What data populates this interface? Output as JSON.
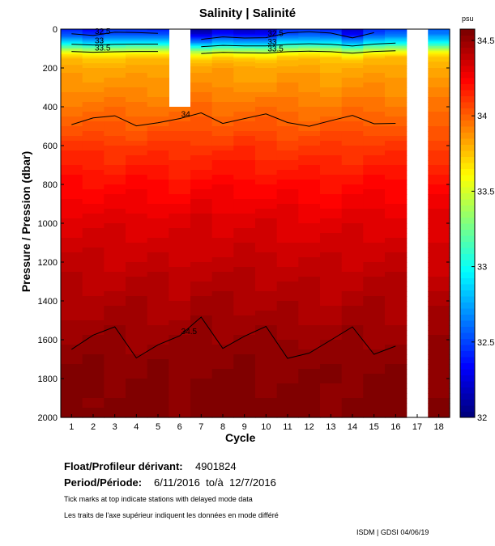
{
  "chart_data": {
    "type": "heatmap",
    "title": "Salinity | Salinité",
    "xlabel": "Cycle",
    "ylabel": "Pressure / Pression (dbar)",
    "colorbar_label": "psu",
    "colorbar_ticks": [
      "32",
      "32.5",
      "33",
      "33.5",
      "34",
      "34.5"
    ],
    "clim": [
      32,
      34.575
    ],
    "x_ticks": [
      "1",
      "2",
      "3",
      "4",
      "5",
      "6",
      "7",
      "8",
      "9",
      "10",
      "11",
      "12",
      "13",
      "14",
      "15",
      "16",
      "17",
      "18"
    ],
    "y_ticks": [
      "0",
      "200",
      "400",
      "600",
      "800",
      "1000",
      "1200",
      "1400",
      "1600",
      "1800",
      "2000"
    ],
    "ylim": [
      0,
      2000
    ],
    "depths": [
      0,
      25,
      50,
      75,
      100,
      125,
      150,
      200,
      300,
      400,
      500,
      600,
      800,
      1000,
      1200,
      1400,
      1600,
      1800,
      2000
    ],
    "base_profile": [
      32.4,
      32.5,
      32.7,
      32.95,
      33.3,
      33.6,
      33.75,
      33.82,
      33.88,
      33.95,
      34.02,
      34.1,
      34.22,
      34.32,
      34.38,
      34.44,
      34.5,
      34.54,
      34.56
    ],
    "cycles": [
      1,
      2,
      3,
      4,
      5,
      6,
      7,
      8,
      9,
      10,
      11,
      12,
      13,
      14,
      15,
      16,
      17,
      18
    ],
    "surface_offset": [
      0.0,
      -0.1,
      0.05,
      0.05,
      0.0,
      0,
      -0.3,
      -0.15,
      -0.25,
      -0.2,
      0.05,
      0.05,
      0.0,
      -0.2,
      0.05,
      0.1,
      0,
      0.2
    ],
    "deep_offset": [
      0,
      0,
      0,
      0,
      0,
      -0.01,
      0.015,
      0.01,
      0.01,
      0.005,
      0,
      -0.005,
      -0.01,
      0,
      0.005,
      0,
      0,
      -0.01
    ],
    "missing": [
      {
        "cycle": 6,
        "from": 0,
        "to": 400
      },
      {
        "cycle": 17,
        "from": 0,
        "to": 2000
      }
    ],
    "contour_levels": [
      "32.5",
      "33",
      "33.5",
      "34",
      "34.5"
    ]
  },
  "footer": {
    "float_label": "Float/Profileur dérivant:",
    "float_id": "4901824",
    "period_label": "Period/Période:",
    "period_value": "6/11/2016  to/à  12/7/2016",
    "note_en": "Tick marks at top indicate stations with delayed mode data",
    "note_fr": "Les traits de l'axe supérieur indiquent les données en mode différé",
    "credit": "ISDM | GDSI  04/06/19"
  }
}
